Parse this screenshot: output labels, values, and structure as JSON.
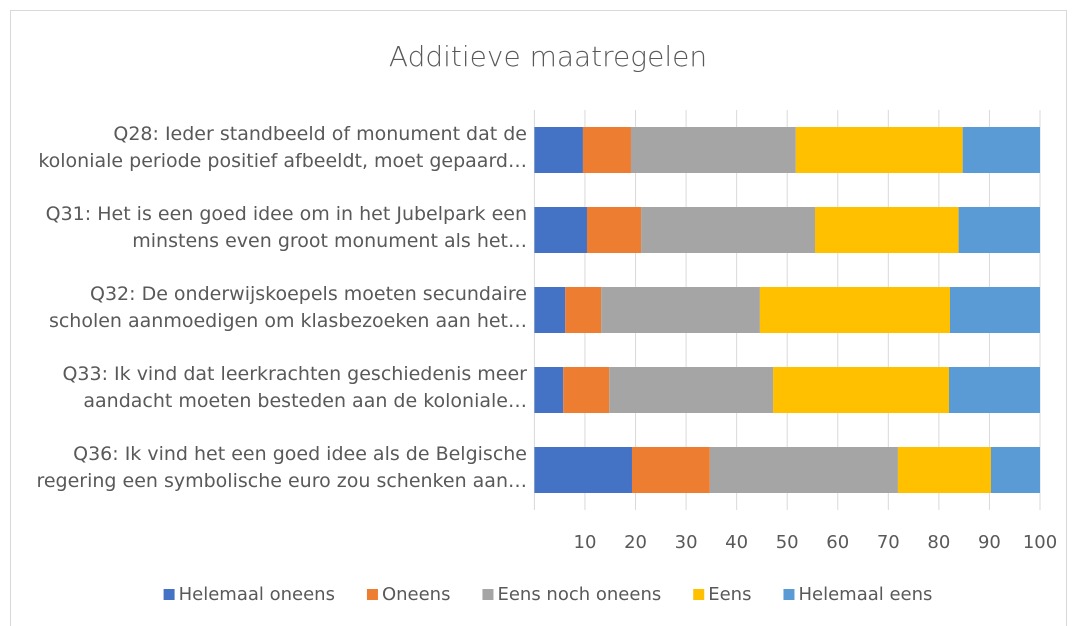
{
  "chart_data": {
    "type": "stacked_bar_horizontal",
    "title": "Additieve maatregelen",
    "categories": [
      "Q28: Ieder standbeeld of monument dat de\nkoloniale periode positief afbeeldt, moet gepaard…",
      "Q31: Het is een goed idee om in het Jubelpark een\nminstens even groot monument als het…",
      "Q32: De onderwijskoepels moeten secundaire\nscholen aanmoedigen om klasbezoeken aan het…",
      "Q33: Ik vind dat leerkrachten geschiedenis meer\naandacht moeten besteden aan de koloniale…",
      "Q36: Ik vind het een goed idee als de Belgische\nregering een symbolische euro zou schenken aan…"
    ],
    "series": [
      {
        "name": "Helemaal oneens",
        "color": "#4472c4",
        "values": [
          9.6,
          10.4,
          6.1,
          5.7,
          19.3
        ]
      },
      {
        "name": "Oneens",
        "color": "#ed7d31",
        "values": [
          9.5,
          10.7,
          7.1,
          9.1,
          15.4
        ]
      },
      {
        "name": "Eens noch oneens",
        "color": "#a5a5a5",
        "values": [
          32.6,
          34.4,
          31.4,
          32.4,
          37.2
        ]
      },
      {
        "name": "Eens",
        "color": "#ffc000",
        "values": [
          33.0,
          28.4,
          37.6,
          34.8,
          18.4
        ]
      },
      {
        "name": "Helemaal eens",
        "color": "#5b9bd5",
        "values": [
          15.3,
          16.1,
          17.8,
          18.0,
          9.7
        ]
      }
    ],
    "xlim": [
      0,
      100
    ],
    "xticks": [
      10,
      20,
      30,
      40,
      50,
      60,
      70,
      80,
      90,
      100
    ],
    "grid": true,
    "legend": "bottom"
  }
}
